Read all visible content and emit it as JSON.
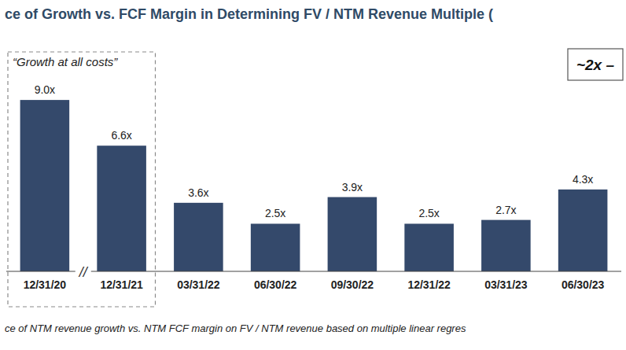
{
  "chart_data": {
    "type": "bar",
    "title": "ce of Growth vs. FCF Margin in Determining FV / NTM Revenue Multiple (",
    "categories": [
      "12/31/20",
      "12/31/21",
      "03/31/22",
      "06/30/22",
      "09/30/22",
      "12/31/22",
      "03/31/23",
      "06/30/23"
    ],
    "values": [
      9.0,
      6.6,
      3.6,
      2.5,
      3.9,
      2.5,
      2.7,
      4.3
    ],
    "value_labels": [
      "9.0x",
      "6.6x",
      "3.6x",
      "2.5x",
      "3.9x",
      "2.5x",
      "2.7x",
      "4.3x"
    ],
    "data_labels": true,
    "color": "#34496b",
    "ylim": [
      0,
      9.5
    ],
    "tick_labels": "x",
    "grid": false,
    "annotations": [
      "“Growth at all costs”",
      "~2x –",
      "//"
    ],
    "caption": "ce of NTM revenue growth vs. NTM FCF margin on FV / NTM revenue based on multiple linear regres"
  }
}
